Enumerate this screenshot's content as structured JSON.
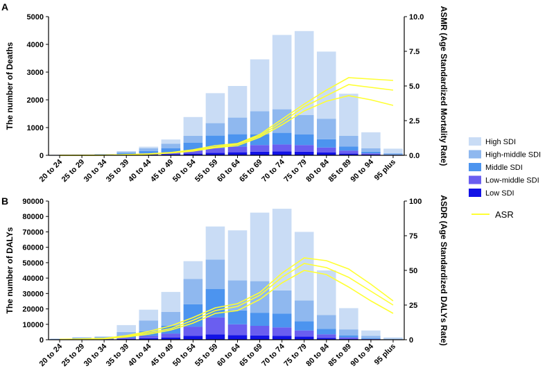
{
  "legend": {
    "entries": [
      "High SDI",
      "High-middle SDI",
      "Middle SDI",
      "Low-middle SDI",
      "Low SDI"
    ],
    "colors": [
      "#c9dcf5",
      "#8fb8ef",
      "#4c94ef",
      "#6a5ef0",
      "#1212e6"
    ],
    "line_label": "ASR",
    "line_color": "#ffff33"
  },
  "chart_data": [
    {
      "panel": "A",
      "type": "bar",
      "stacked": true,
      "ylabel": "The number of Deaths",
      "y2label": "ASMR (Age Standardized Mortality Rate)",
      "ylim": [
        0,
        5000
      ],
      "yticks": [
        "0",
        "1000",
        "2000",
        "3000",
        "4000",
        "5000"
      ],
      "y2lim": [
        0,
        10
      ],
      "y2ticks": [
        "0.0",
        "2.5",
        "5.0",
        "7.5",
        "10.0"
      ],
      "categories": [
        "20 to 24",
        "25 to 29",
        "30 to 34",
        "35 to 39",
        "40 to 44",
        "45 to 49",
        "50 to 54",
        "55 to 59",
        "60 to 64",
        "65 to 69",
        "70 to 74",
        "75 to 79",
        "80 to 84",
        "85 to 89",
        "90 to 94",
        "95 plus"
      ],
      "series": [
        {
          "name": "Low SDI",
          "values": [
            2,
            3,
            5,
            15,
            25,
            40,
            60,
            90,
            110,
            130,
            140,
            130,
            100,
            60,
            25,
            8
          ]
        },
        {
          "name": "Low-middle SDI",
          "values": [
            3,
            5,
            8,
            25,
            45,
            70,
            110,
            170,
            200,
            240,
            250,
            240,
            180,
            110,
            45,
            12
          ]
        },
        {
          "name": "Middle SDI",
          "values": [
            5,
            8,
            12,
            40,
            80,
            140,
            280,
            450,
            450,
            380,
            420,
            380,
            300,
            150,
            60,
            20
          ]
        },
        {
          "name": "High-middle SDI",
          "values": [
            4,
            8,
            15,
            50,
            100,
            170,
            250,
            450,
            600,
            840,
            850,
            700,
            740,
            380,
            120,
            40
          ]
        },
        {
          "name": "High SDI",
          "values": [
            1,
            2,
            5,
            20,
            60,
            150,
            680,
            1080,
            1140,
            1870,
            2680,
            3030,
            2420,
            1520,
            580,
            160
          ]
        }
      ],
      "lines": [
        {
          "name": "ASR-1",
          "values": [
            0.0,
            0.0,
            0.01,
            0.05,
            0.1,
            0.2,
            0.4,
            0.7,
            0.85,
            1.5,
            2.6,
            3.7,
            4.7,
            5.6,
            5.5,
            5.4
          ]
        },
        {
          "name": "ASR-2",
          "values": [
            0.0,
            0.0,
            0.01,
            0.05,
            0.1,
            0.2,
            0.35,
            0.6,
            0.8,
            1.4,
            2.4,
            3.5,
            4.3,
            5.1,
            4.9,
            4.7
          ]
        },
        {
          "name": "ASR-3",
          "values": [
            0.0,
            0.0,
            0.01,
            0.04,
            0.08,
            0.17,
            0.3,
            0.55,
            0.7,
            1.3,
            2.2,
            3.2,
            3.9,
            4.3,
            4.0,
            3.6
          ]
        }
      ]
    },
    {
      "panel": "B",
      "type": "bar",
      "stacked": true,
      "ylabel": "The number of DALYs",
      "y2label": "ASDR (Age Standardized DALYs Rate)",
      "ylim": [
        0,
        90000
      ],
      "yticks": [
        "0",
        "10000",
        "20000",
        "30000",
        "40000",
        "50000",
        "60000",
        "70000",
        "80000",
        "90000"
      ],
      "y2lim": [
        0,
        100
      ],
      "y2ticks": [
        "0",
        "25",
        "50",
        "75",
        "100"
      ],
      "categories": [
        "20 to 24",
        "25 to 29",
        "30 to 34",
        "35 to 39",
        "40 to 44",
        "45 to 49",
        "50 to 54",
        "55 to 59",
        "60 to 64",
        "65 to 69",
        "70 to 74",
        "75 to 79",
        "80 to 84",
        "85 to 89",
        "90 to 94",
        "95 plus"
      ],
      "series": [
        {
          "name": "Low SDI",
          "values": [
            100,
            200,
            300,
            600,
            1000,
            1500,
            2500,
            3500,
            3000,
            2800,
            2500,
            2000,
            1200,
            600,
            200,
            50
          ]
        },
        {
          "name": "Low-middle SDI",
          "values": [
            100,
            200,
            300,
            700,
            1500,
            2500,
            6000,
            11000,
            7000,
            6200,
            5500,
            4000,
            2300,
            900,
            300,
            100
          ]
        },
        {
          "name": "Middle SDI",
          "values": [
            200,
            500,
            700,
            1200,
            3000,
            5000,
            14500,
            18500,
            9000,
            8500,
            9000,
            6000,
            3500,
            1200,
            500,
            150
          ]
        },
        {
          "name": "High-middle SDI",
          "values": [
            200,
            600,
            700,
            2500,
            7000,
            9000,
            16500,
            19000,
            19500,
            20500,
            15000,
            13500,
            9000,
            4000,
            1500,
            400
          ]
        },
        {
          "name": "High SDI",
          "values": [
            0,
            0,
            0,
            4500,
            7000,
            13000,
            11500,
            21500,
            32500,
            44500,
            53000,
            44500,
            29000,
            13800,
            3500,
            800
          ]
        }
      ],
      "lines": [
        {
          "name": "ASR-1",
          "values": [
            0.3,
            0.6,
            1.0,
            3.0,
            6.0,
            10.0,
            16.0,
            23.0,
            26.0,
            34.0,
            48.0,
            59.0,
            57.0,
            51.0,
            40.0,
            28.0
          ]
        },
        {
          "name": "ASR-2",
          "values": [
            0.2,
            0.5,
            0.8,
            2.5,
            5.0,
            8.0,
            14.0,
            21.0,
            24.0,
            32.0,
            45.0,
            55.0,
            52.0,
            45.0,
            35.0,
            25.0
          ]
        },
        {
          "name": "ASR-3",
          "values": [
            0.2,
            0.4,
            0.7,
            2.0,
            4.0,
            7.0,
            12.0,
            19.0,
            21.0,
            29.0,
            41.0,
            50.0,
            47.0,
            38.0,
            28.0,
            19.0
          ]
        }
      ]
    }
  ]
}
